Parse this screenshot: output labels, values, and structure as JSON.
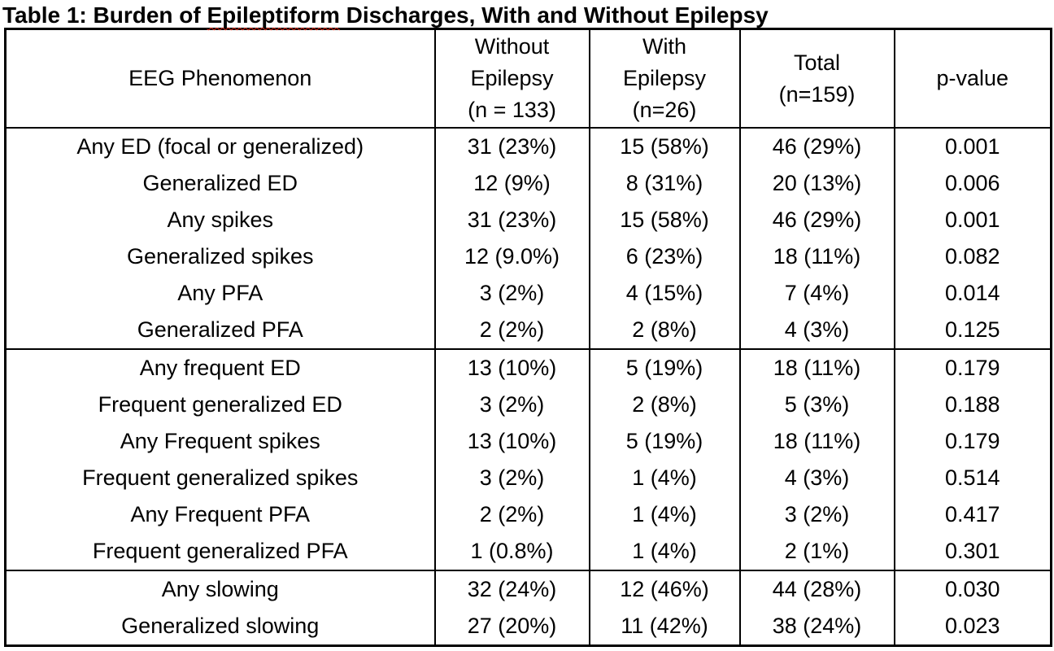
{
  "title": {
    "prefix": "Table 1: Burden of ",
    "misspelled_word": "Epileptiform",
    "suffix": " Discharges, With and Without Epilepsy"
  },
  "table": {
    "headers": [
      "EEG Phenomenon",
      "Without\nEpilepsy\n(n = 133)",
      "With\nEpilepsy\n(n=26)",
      "Total\n(n=159)",
      "p-value"
    ],
    "rows": [
      {
        "cells": [
          "Any ED (focal or generalized)",
          "31 (23%)",
          "15 (58%)",
          "46 (29%)",
          "0.001"
        ]
      },
      {
        "cells": [
          "Generalized ED",
          "12 (9%)",
          "8 (31%)",
          "20 (13%)",
          "0.006"
        ]
      },
      {
        "cells": [
          "Any spikes",
          "31 (23%)",
          "15 (58%)",
          "46 (29%)",
          "0.001"
        ]
      },
      {
        "cells": [
          "Generalized spikes",
          "12 (9.0%)",
          "6 (23%)",
          "18 (11%)",
          "0.082"
        ]
      },
      {
        "cells": [
          "Any PFA",
          "3 (2%)",
          "4 (15%)",
          "7 (4%)",
          "0.014"
        ]
      },
      {
        "cells": [
          "Generalized PFA",
          "2 (2%)",
          "2 (8%)",
          "4 (3%)",
          "0.125"
        ]
      },
      {
        "cells": [
          "Any frequent ED",
          "13 (10%)",
          "5 (19%)",
          "18 (11%)",
          "0.179"
        ]
      },
      {
        "cells": [
          "Frequent generalized ED",
          "3 (2%)",
          "2 (8%)",
          "5 (3%)",
          "0.188"
        ]
      },
      {
        "cells": [
          "Any Frequent spikes",
          "13 (10%)",
          "5 (19%)",
          "18 (11%)",
          "0.179"
        ]
      },
      {
        "cells": [
          "Frequent generalized spikes",
          "3 (2%)",
          "1 (4%)",
          "4 (3%)",
          "0.514"
        ]
      },
      {
        "cells": [
          "Any Frequent PFA",
          "2 (2%)",
          "1 (4%)",
          "3 (2%)",
          "0.417"
        ]
      },
      {
        "cells": [
          "Frequent generalized PFA",
          "1 (0.8%)",
          "1 (4%)",
          "2 (1%)",
          "0.301"
        ]
      },
      {
        "cells": [
          "Any slowing",
          "32 (24%)",
          "12 (46%)",
          "44 (28%)",
          "0.030"
        ]
      },
      {
        "cells": [
          "Generalized slowing",
          "27 (20%)",
          "11 (42%)",
          "38 (24%)",
          "0.023"
        ]
      }
    ]
  },
  "colors": {
    "text": "#000000",
    "border": "#000000",
    "background": "#ffffff",
    "spellcheck_underline": "#e03020"
  }
}
